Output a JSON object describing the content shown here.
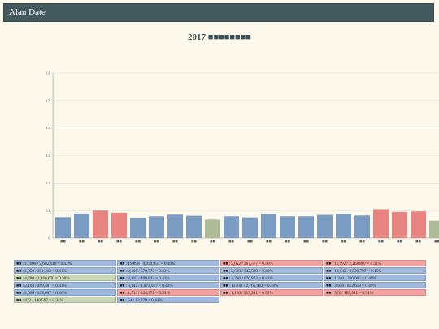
{
  "header": {
    "title": "Alan Date"
  },
  "page": {
    "title": "2017 ■■■■■■■■"
  },
  "colors": {
    "blue": "#7a9cc2",
    "red": "#e8847f",
    "green": "#adbb99",
    "legend_blue": "#9fb8de",
    "legend_red": "#f2a3a0",
    "legend_green": "#c8d6b8",
    "axis": "#999999",
    "grid": "#e4e0d4"
  },
  "chart_data": {
    "type": "bar",
    "ylim": [
      0,
      0.6
    ],
    "yticks": [
      "0",
      "0.1",
      "0.2",
      "0.3",
      "0.4",
      "0.5",
      "0.6"
    ],
    "categories": [
      "■■",
      "■■",
      "■■",
      "■■",
      "■■",
      "■■",
      "■■",
      "■■",
      "■■",
      "■■",
      "■■",
      "■■",
      "■■",
      "■■",
      "■■",
      "■■",
      "■■",
      "■■",
      "■■",
      "■■",
      "■■"
    ],
    "values": [
      0.076,
      0.089,
      0.1,
      0.092,
      0.074,
      0.079,
      0.085,
      0.081,
      0.067,
      0.079,
      0.075,
      0.088,
      0.079,
      0.079,
      0.084,
      0.088,
      0.082,
      0.105,
      0.095,
      0.097,
      0.063
    ],
    "bar_colors": [
      "blue",
      "blue",
      "red",
      "red",
      "blue",
      "blue",
      "blue",
      "blue",
      "green",
      "blue",
      "blue",
      "blue",
      "blue",
      "blue",
      "blue",
      "blue",
      "blue",
      "red",
      "red",
      "red",
      "green"
    ]
  },
  "legend": {
    "items": [
      {
        "text": "■■ : 11,000 / 2,602,418 = 0.42%",
        "color": "legend_blue"
      },
      {
        "text": "■■ : 19,898 / 4,030,954 = 0.49%",
        "color": "legend_blue"
      },
      {
        "text": "■■ : 2,052 / 367,577 = 0.56%",
        "color": "legend_red"
      },
      {
        "text": "■■ : 11,592 / 2,268,807 = 0.51%",
        "color": "legend_red"
      },
      {
        "text": "■■ : 1,850 / 451,412 = 0.41%",
        "color": "legend_blue"
      },
      {
        "text": "■■ : 2,466 / 570,775 = 0.43%",
        "color": "legend_blue"
      },
      {
        "text": "■■ : 2,598 / 542,590 = 0.48%",
        "color": "legend_blue"
      },
      {
        "text": "■■ : 12,642 / 2,820,787 = 0.45%",
        "color": "legend_blue"
      },
      {
        "text": "■■ : 4,780 / 1,266,670 = 0.38%",
        "color": "legend_green"
      },
      {
        "text": "■■ : 2,132 / 490,832 = 0.43%",
        "color": "legend_blue"
      },
      {
        "text": "■■ : 2,790 / 676,873 = 0.41%",
        "color": "legend_blue"
      },
      {
        "text": "■■ : 1,310 / 266,005 = 0.49%",
        "color": "legend_blue"
      },
      {
        "text": "■■ : 2,164 / 499,481 = 0.43%",
        "color": "legend_blue"
      },
      {
        "text": "■■ : 8,142 / 1,874,917 = 0.43%",
        "color": "legend_blue"
      },
      {
        "text": "■■ : 13,242 / 2,765,932 = 0.48%",
        "color": "legend_blue"
      },
      {
        "text": "■■ : 3,958 / 812,658 = 0.49%",
        "color": "legend_blue"
      },
      {
        "text": "■■ : 2,066 / 453,087 = 0.46%",
        "color": "legend_blue"
      },
      {
        "text": "■■ : 1,914 / 324,372 = 0.59%",
        "color": "legend_red"
      },
      {
        "text": "■■ : 1,130 / 215,261 = 0.52%",
        "color": "legend_red"
      },
      {
        "text": "■■ : 572 / 105,952 = 0.54%",
        "color": "legend_red"
      },
      {
        "text": "■■ : 472 / 140,597 = 0.34%",
        "color": "legend_green"
      },
      {
        "text": "■■ : 54 / 13,279 = 0.41%",
        "color": "legend_blue"
      }
    ]
  }
}
